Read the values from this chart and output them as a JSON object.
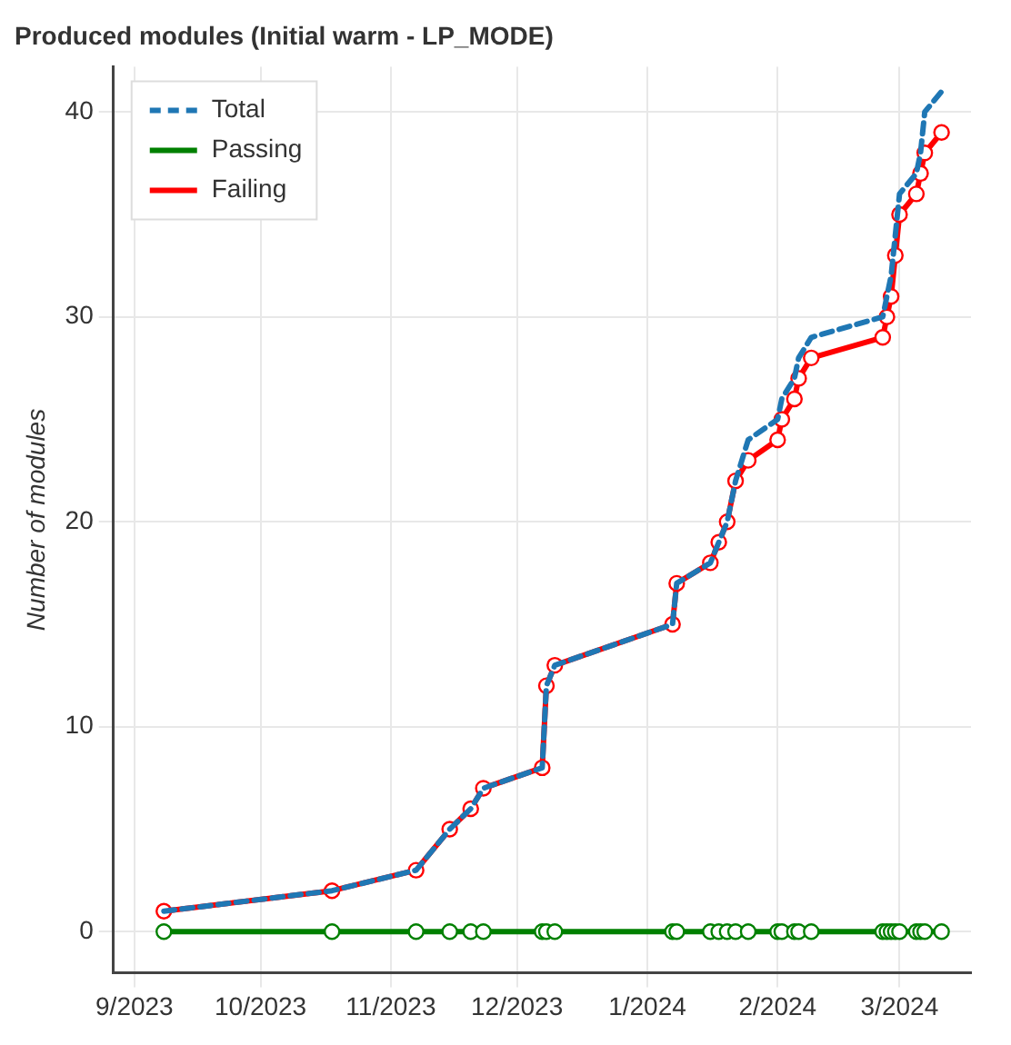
{
  "chart_data": {
    "type": "line",
    "title": "Produced modules (Initial warm - LP_MODE)",
    "ylabel": "Number of modules",
    "x": [
      "2023-09-08",
      "2023-10-18",
      "2023-11-07",
      "2023-11-15",
      "2023-11-20",
      "2023-11-23",
      "2023-12-07",
      "2023-12-08",
      "2023-12-10",
      "2024-01-07",
      "2024-01-08",
      "2024-01-16",
      "2024-01-18",
      "2024-01-20",
      "2024-01-22",
      "2024-01-25",
      "2024-02-01",
      "2024-02-02",
      "2024-02-05",
      "2024-02-06",
      "2024-02-09",
      "2024-02-26",
      "2024-02-27",
      "2024-02-28",
      "2024-02-29",
      "2024-03-01",
      "2024-03-05",
      "2024-03-06",
      "2024-03-07",
      "2024-03-11"
    ],
    "series": [
      {
        "name": "Total",
        "color": "#1f77b4",
        "line_style": "dashed",
        "marker": "none",
        "values": [
          1,
          2,
          3,
          5,
          6,
          7,
          8,
          12,
          13,
          15,
          17,
          18,
          19,
          20,
          22,
          24,
          25,
          26,
          27,
          28,
          29,
          30,
          31,
          32,
          34,
          36,
          37,
          38,
          40,
          41
        ]
      },
      {
        "name": "Passing",
        "color": "#008000",
        "line_style": "solid",
        "marker": "circle",
        "values": [
          0,
          0,
          0,
          0,
          0,
          0,
          0,
          0,
          0,
          0,
          0,
          0,
          0,
          0,
          0,
          0,
          0,
          0,
          0,
          0,
          0,
          0,
          0,
          0,
          0,
          0,
          0,
          0,
          0,
          0
        ]
      },
      {
        "name": "Failing",
        "color": "#ff0000",
        "line_style": "solid",
        "marker": "circle",
        "values": [
          1,
          2,
          3,
          5,
          6,
          7,
          8,
          12,
          13,
          15,
          17,
          18,
          19,
          20,
          22,
          23,
          24,
          25,
          26,
          27,
          28,
          29,
          30,
          31,
          33,
          35,
          36,
          37,
          38,
          39
        ]
      }
    ],
    "xlim": [
      "2023-08-27",
      "2024-03-18"
    ],
    "xticks": [
      {
        "value": "2023-09-01",
        "label": "9/2023"
      },
      {
        "value": "2023-10-01",
        "label": "10/2023"
      },
      {
        "value": "2023-11-01",
        "label": "11/2023"
      },
      {
        "value": "2023-12-01",
        "label": "12/2023"
      },
      {
        "value": "2024-01-01",
        "label": "1/2024"
      },
      {
        "value": "2024-02-01",
        "label": "2/2024"
      },
      {
        "value": "2024-03-01",
        "label": "3/2024"
      }
    ],
    "ylim": [
      -2,
      42.2
    ],
    "yticks": [
      0,
      10,
      20,
      30,
      40
    ],
    "grid": true,
    "legend": "top left"
  }
}
